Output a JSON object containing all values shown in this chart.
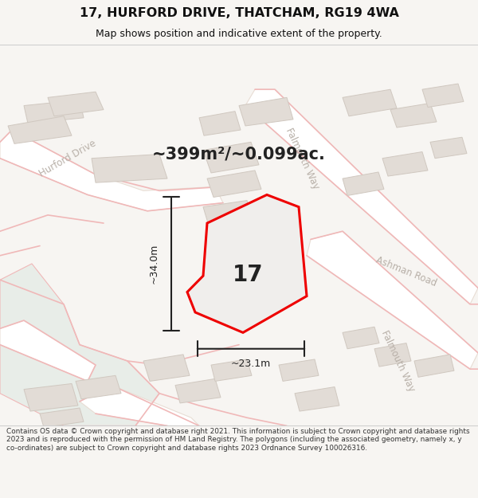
{
  "title": "17, HURFORD DRIVE, THATCHAM, RG19 4WA",
  "subtitle": "Map shows position and indicative extent of the property.",
  "area_text": "~399m²/~0.099ac.",
  "dim_width": "~23.1m",
  "dim_height": "~34.0m",
  "property_number": "17",
  "footer": "Contains OS data © Crown copyright and database right 2021. This information is subject to Crown copyright and database rights 2023 and is reproduced with the permission of HM Land Registry. The polygons (including the associated geometry, namely x, y co-ordinates) are subject to Crown copyright and database rights 2023 Ordnance Survey 100026316.",
  "bg_color": "#f7f5f2",
  "map_bg": "#f7f5f2",
  "road_color": "#ffffff",
  "road_stroke": "#e8ddd4",
  "building_fill": "#e2dcd6",
  "building_stroke": "#d0c8c0",
  "property_fill": "#f0eeec",
  "property_stroke": "#ee0000",
  "green_fill": "#e8ede8",
  "dimension_color": "#222222",
  "label_color": "#222222",
  "street_label_color": "#b8b0a8",
  "title_color": "#111111",
  "footer_color": "#333333",
  "pink_street": "#f0b8b8",
  "title_line_color": "#cccccc",
  "footer_line_color": "#cccccc"
}
